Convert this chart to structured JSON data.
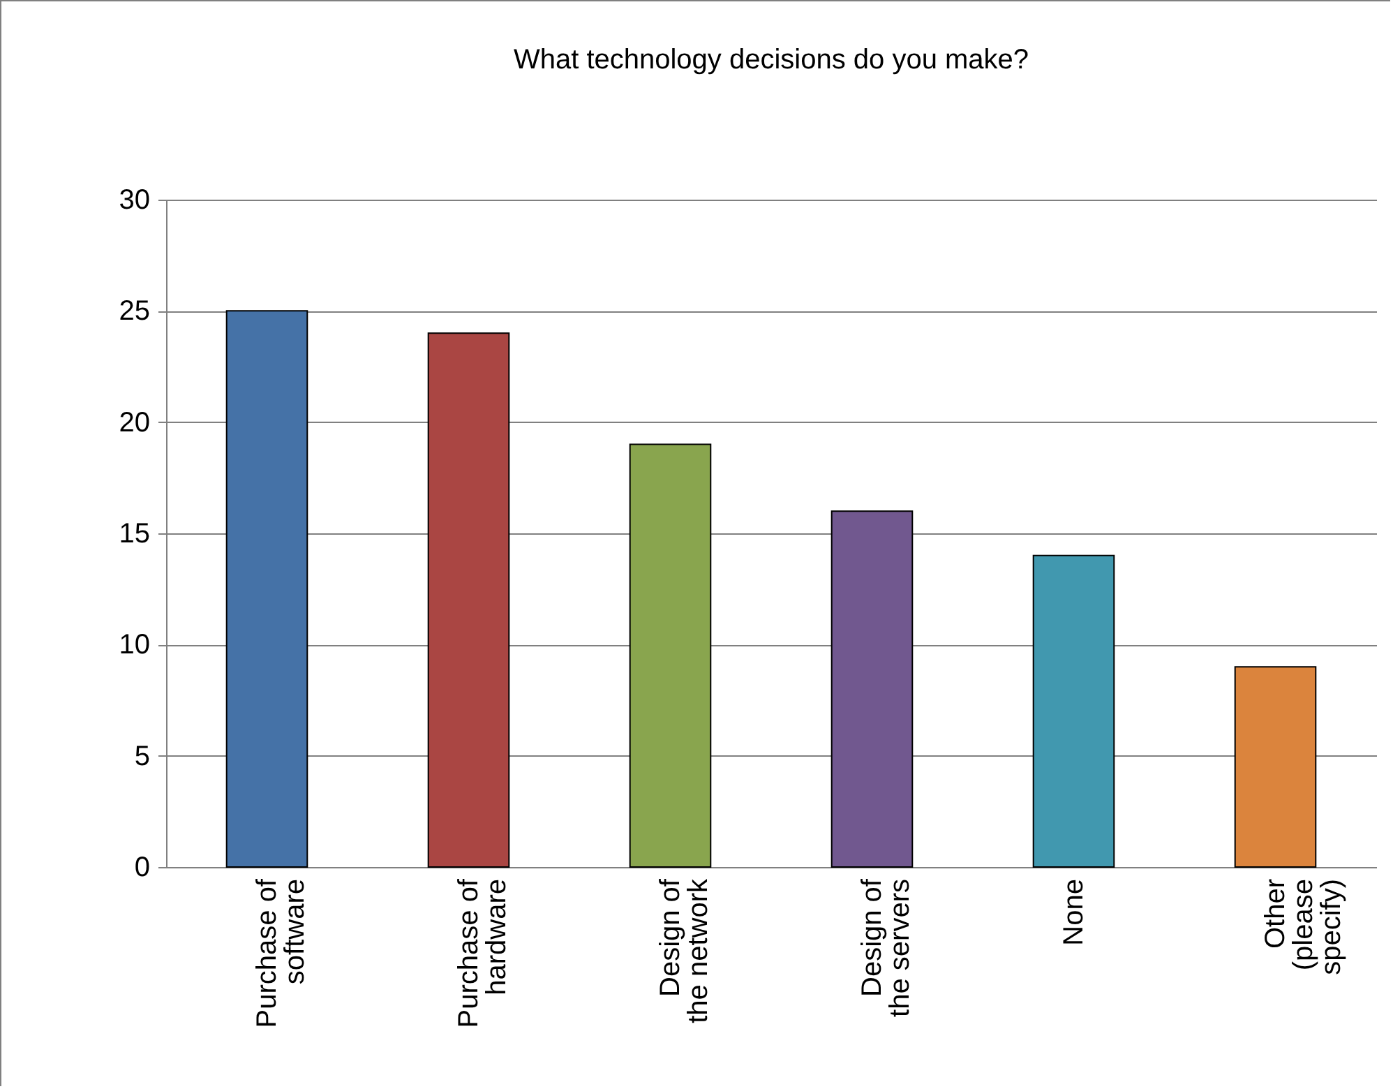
{
  "chart_data": {
    "type": "bar",
    "title": "What technology decisions do you make?",
    "categories": [
      "Purchase of software",
      "Purchase of hardware",
      "Design of the network",
      "Design of the servers",
      "None",
      "Other (please specify)"
    ],
    "values": [
      25,
      24,
      19,
      16,
      14,
      9
    ],
    "colors": [
      "#4572a7",
      "#aa4643",
      "#89a54e",
      "#71588f",
      "#4198af",
      "#db843d"
    ],
    "ylim": [
      0,
      30
    ],
    "yticks": [
      0,
      5,
      10,
      15,
      20,
      25,
      30
    ],
    "grid": "y"
  }
}
